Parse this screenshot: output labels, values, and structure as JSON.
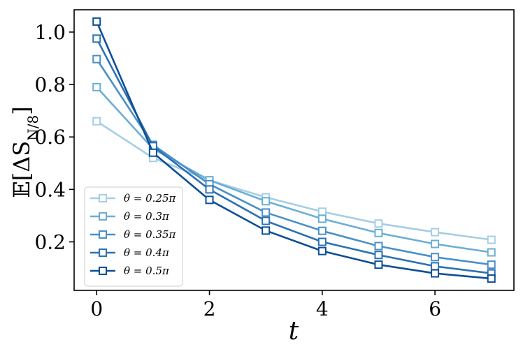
{
  "chart_data": {
    "type": "line",
    "title": "",
    "xlabel": "t",
    "ylabel": "E[ΔS_{N/8}]",
    "xlim": [
      -0.4,
      7.4
    ],
    "ylim": [
      0.015,
      1.085
    ],
    "xticks": [
      0,
      2,
      4,
      6
    ],
    "yticks": [
      0.2,
      0.4,
      0.6,
      0.8,
      1.0
    ],
    "xtick_labels": [
      "0",
      "2",
      "4",
      "6"
    ],
    "ytick_labels": [
      "0.2",
      "0.4",
      "0.6",
      "0.8",
      "1.0"
    ],
    "grid": false,
    "legend_position": "lower-left",
    "marker": "square",
    "x": [
      0,
      1,
      2,
      3,
      4,
      5,
      6,
      7
    ],
    "series": [
      {
        "name": "θ = 0.25π",
        "color": "#a6cee3",
        "values": [
          0.66,
          0.52,
          0.435,
          0.37,
          0.315,
          0.27,
          0.237,
          0.208
        ]
      },
      {
        "name": "θ = 0.3π",
        "color": "#6aaed6",
        "values": [
          0.79,
          0.555,
          0.435,
          0.355,
          0.288,
          0.234,
          0.192,
          0.16
        ]
      },
      {
        "name": "θ = 0.35π",
        "color": "#4a90c7",
        "values": [
          0.897,
          0.57,
          0.42,
          0.312,
          0.242,
          0.184,
          0.142,
          0.113
        ]
      },
      {
        "name": "θ = 0.4π",
        "color": "#2c72b3",
        "values": [
          0.975,
          0.565,
          0.4,
          0.28,
          0.2,
          0.15,
          0.107,
          0.08
        ]
      },
      {
        "name": "θ = 0.5π",
        "color": "#0d4f96",
        "values": [
          1.04,
          0.54,
          0.36,
          0.243,
          0.165,
          0.113,
          0.08,
          0.06
        ]
      }
    ]
  }
}
